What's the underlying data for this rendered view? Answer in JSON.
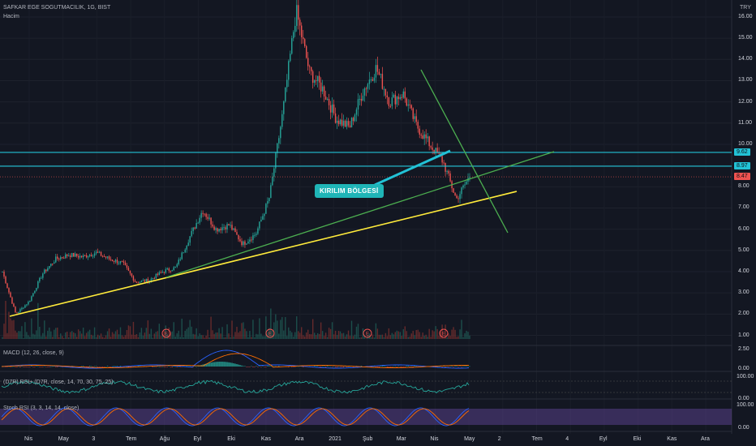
{
  "header": {
    "symbol": "SAFKAR EGE SOGUTMACILIK, 1G, BIST",
    "volume_label": "Hacim",
    "currency": "TRY"
  },
  "colors": {
    "background": "#131722",
    "up": "#26a69a",
    "down": "#ef5350",
    "cyan_level": "#22c2d6",
    "green_trend": "#4caf50",
    "yellow_trend": "#ffeb3b",
    "macd_line": "#2962ff",
    "signal_line": "#ff6d00",
    "rsi_line": "#ffffff",
    "stoch_band": "#7e57c2"
  },
  "price_axis": {
    "ticks": [
      "16.00",
      "15.00",
      "14.00",
      "13.00",
      "12.00",
      "11.00",
      "10.00",
      "9.00",
      "8.00",
      "7.00",
      "6.00",
      "5.00",
      "4.00",
      "3.00",
      "2.00",
      "1.00"
    ],
    "level_tags": [
      {
        "text": "9.62",
        "value": 9.62,
        "color": "#22c2d6"
      },
      {
        "text": "8.97",
        "value": 8.97,
        "color": "#22c2d6"
      },
      {
        "text": "8.47",
        "value": 8.47,
        "color": "#ef5350"
      }
    ]
  },
  "time_axis": [
    "Nis",
    "May",
    "3",
    "Tem",
    "Ağu",
    "Eyl",
    "Eki",
    "Kas",
    "Ara",
    "2021",
    "Şub",
    "Mar",
    "Nis",
    "May",
    "2",
    "Tem",
    "4",
    "Eyl",
    "Eki",
    "Kas",
    "Ara"
  ],
  "annotation": {
    "text": "KIRILIM BÖLGESİ"
  },
  "earnings_markers": [
    "E",
    "E",
    "E",
    "E"
  ],
  "panes": {
    "macd": {
      "title": "MACD (12, 26, close, 9)",
      "ticks": [
        "2.50",
        "0.00"
      ]
    },
    "rsi": {
      "title": "(D7R) RSI+ (D7R, close, 14, 70, 30, 75, 25)",
      "ticks": [
        "100.00",
        "0.00"
      ]
    },
    "stoch": {
      "title": "Stoch RSI (3, 3, 14, 14, close)",
      "ticks": [
        "100.00",
        "0.00"
      ]
    }
  },
  "chart_data": {
    "type": "candlestick",
    "title": "SAFKAR EGE SOGUTMACILIK, 1G, BIST",
    "currency": "TRY",
    "period_start": "2020-04",
    "period_end": "2021-05",
    "close_path": [
      {
        "t": "Nis 2020",
        "v": 4.0
      },
      {
        "t": "",
        "v": 2.0
      },
      {
        "t": "",
        "v": 2.6
      },
      {
        "t": "May",
        "v": 3.9
      },
      {
        "t": "",
        "v": 4.6
      },
      {
        "t": "",
        "v": 4.8
      },
      {
        "t": "3",
        "v": 4.7
      },
      {
        "t": "",
        "v": 4.9
      },
      {
        "t": "Tem",
        "v": 4.6
      },
      {
        "t": "",
        "v": 4.4
      },
      {
        "t": "",
        "v": 3.5
      },
      {
        "t": "Ağu",
        "v": 3.6
      },
      {
        "t": "",
        "v": 4.0
      },
      {
        "t": "Eyl",
        "v": 4.2
      },
      {
        "t": "",
        "v": 5.6
      },
      {
        "t": "",
        "v": 6.9
      },
      {
        "t": "Eki",
        "v": 6.0
      },
      {
        "t": "",
        "v": 6.2
      },
      {
        "t": "",
        "v": 5.3
      },
      {
        "t": "Kas",
        "v": 5.8
      },
      {
        "t": "",
        "v": 7.5
      },
      {
        "t": "",
        "v": 11.5
      },
      {
        "t": "Ara",
        "v": 16.3
      },
      {
        "t": "",
        "v": 13.4
      },
      {
        "t": "",
        "v": 12.6
      },
      {
        "t": "2021",
        "v": 11.2
      },
      {
        "t": "",
        "v": 10.8
      },
      {
        "t": "Şub",
        "v": 12.5
      },
      {
        "t": "",
        "v": 13.6
      },
      {
        "t": "Mar",
        "v": 12.0
      },
      {
        "t": "",
        "v": 12.4
      },
      {
        "t": "",
        "v": 10.9
      },
      {
        "t": "Nis",
        "v": 10.0
      },
      {
        "t": "",
        "v": 9.2
      },
      {
        "t": "",
        "v": 7.4
      },
      {
        "t": "May",
        "v": 8.5
      }
    ],
    "horizontal_levels": [
      9.62,
      8.97
    ],
    "last_price": 8.47,
    "ylim": [
      0.6,
      16.8
    ],
    "grid": true
  }
}
